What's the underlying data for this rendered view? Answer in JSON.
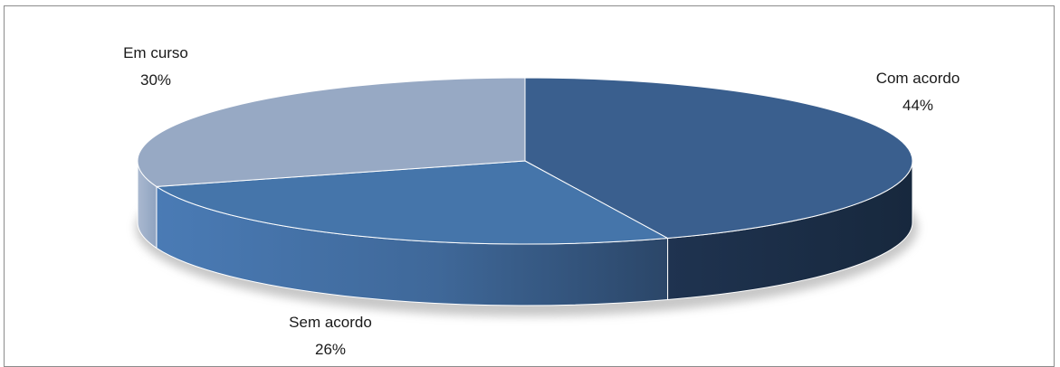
{
  "chart_data": {
    "type": "pie",
    "style": "3d",
    "slices": [
      {
        "category": "Com acordo",
        "value": 44,
        "label": "44%",
        "color": "#3a5f8e",
        "side_color": "#1c2e47"
      },
      {
        "category": "Sem acordo",
        "value": 26,
        "label": "26%",
        "color": "#4575aa",
        "side_color": "#4a78ad"
      },
      {
        "category": "Em curso",
        "value": 30,
        "label": "30%",
        "color": "#97a9c4",
        "side_color": "#a3b4cc"
      }
    ],
    "legend": "none"
  }
}
